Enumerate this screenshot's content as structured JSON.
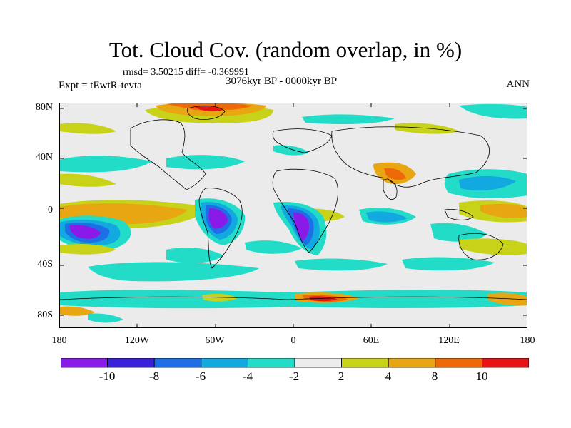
{
  "title": "Tot. Cloud Cov. (random overlap, in %)",
  "stats": "rmsd= 3.50215 diff= -0.369991",
  "expt": "Expt = tEwtR-tevta",
  "period": "3076kyr BP - 0000kyr BP",
  "season": "ANN",
  "axes": {
    "y_ticks": [
      "80N",
      "40N",
      "0",
      "40S",
      "80S"
    ],
    "x_ticks": [
      "180",
      "120W",
      "60W",
      "0",
      "60E",
      "120E",
      "180"
    ]
  },
  "colorbar": {
    "labels": [
      "-10",
      "-8",
      "-6",
      "-4",
      "-2",
      "2",
      "4",
      "8",
      "10"
    ],
    "colors": [
      "#8a1ae8",
      "#3a20d8",
      "#1e6ee6",
      "#12a8e0",
      "#22dcc8",
      "#ececec",
      "#c8d218",
      "#e8a612",
      "#ee6a08",
      "#e61414"
    ]
  },
  "colors": {
    "ocean_background": "#ebebeb",
    "coastline": "#000000"
  }
}
